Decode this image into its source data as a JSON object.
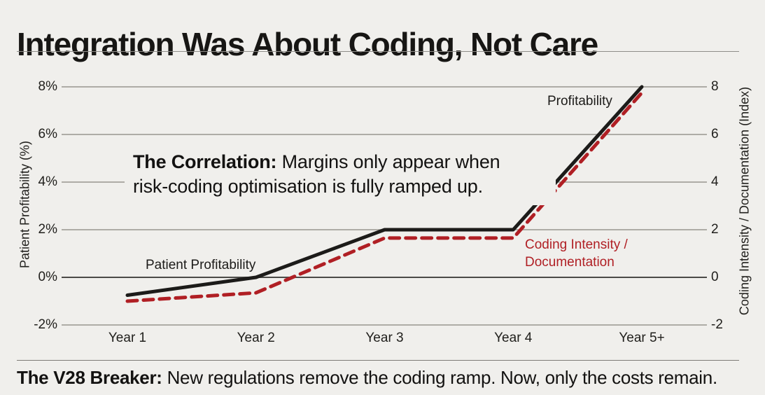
{
  "title": "Integration Was About Coding, Not Care",
  "annotation": {
    "bold": "The Correlation:",
    "line1_rest": " Margins only appear when",
    "line2": "risk-coding optimisation is fully ramped up."
  },
  "footer": {
    "bold": "The V28 Breaker:",
    "rest": " New regulations remove the coding ramp. Now, only the costs remain."
  },
  "colors": {
    "background": "#f0efec",
    "grid_line": "#98968f",
    "zero_line": "#4b4a47",
    "series_black": "#1c1b19",
    "series_red": "#b01f24"
  },
  "chart_data": {
    "type": "line",
    "title": "Integration Was About Coding, Not Care",
    "categories": [
      "Year 1",
      "Year 2",
      "Year 3",
      "Year 4",
      "Year 5+"
    ],
    "series": [
      {
        "name": "Patient Profitability",
        "inline_label": "Patient Profitability",
        "peak_label": "Profitability",
        "color": "#1c1b19",
        "style": "solid",
        "values": [
          -0.75,
          0,
          2,
          2,
          8
        ]
      },
      {
        "name": "Coding Intensity / Documentation",
        "label_line1": "Coding Intensity /",
        "label_line2": "Documentation",
        "color": "#b01f24",
        "style": "dashed",
        "values": [
          -1,
          -0.65,
          1.65,
          1.65,
          7.75
        ]
      }
    ],
    "left_axis": {
      "label": "Patient Profitability (%)",
      "ticks": [
        "8%",
        "6%",
        "4%",
        "2%",
        "0%",
        "-2%"
      ],
      "tick_values": [
        8,
        6,
        4,
        2,
        0,
        -2
      ]
    },
    "right_axis": {
      "label": "Coding Intensity / Documentation (Index)",
      "ticks": [
        "8",
        "6",
        "4",
        "2",
        "0",
        "-2"
      ],
      "tick_values": [
        8,
        6,
        4,
        2,
        0,
        -2
      ]
    },
    "ylim": [
      -2,
      8
    ],
    "grid": true,
    "zero_line_emphasis": true,
    "legend_position": "inline-labels"
  }
}
